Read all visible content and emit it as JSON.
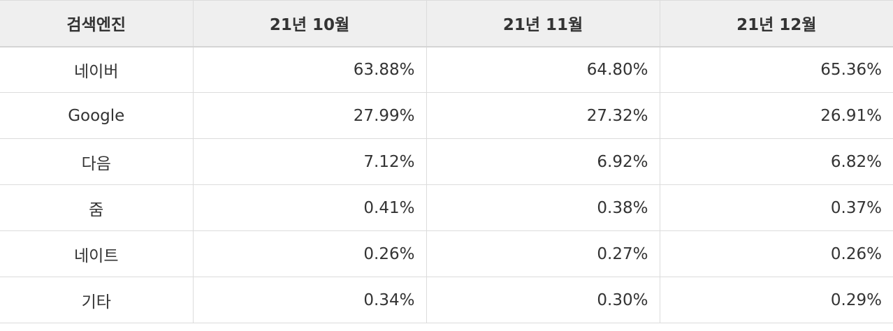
{
  "table": {
    "header": [
      "검색엔진",
      "21년 10월",
      "21년 11월",
      "21년 12월"
    ],
    "rows": [
      [
        "네이버",
        "63.88%",
        "64.80%",
        "65.36%"
      ],
      [
        "Google",
        "27.99%",
        "27.32%",
        "26.91%"
      ],
      [
        "다음",
        "7.12%",
        "6.92%",
        "6.82%"
      ],
      [
        "줌",
        "0.41%",
        "0.38%",
        "0.37%"
      ],
      [
        "네이트",
        "0.26%",
        "0.27%",
        "0.26%"
      ],
      [
        "기타",
        "0.34%",
        "0.30%",
        "0.29%"
      ]
    ]
  }
}
